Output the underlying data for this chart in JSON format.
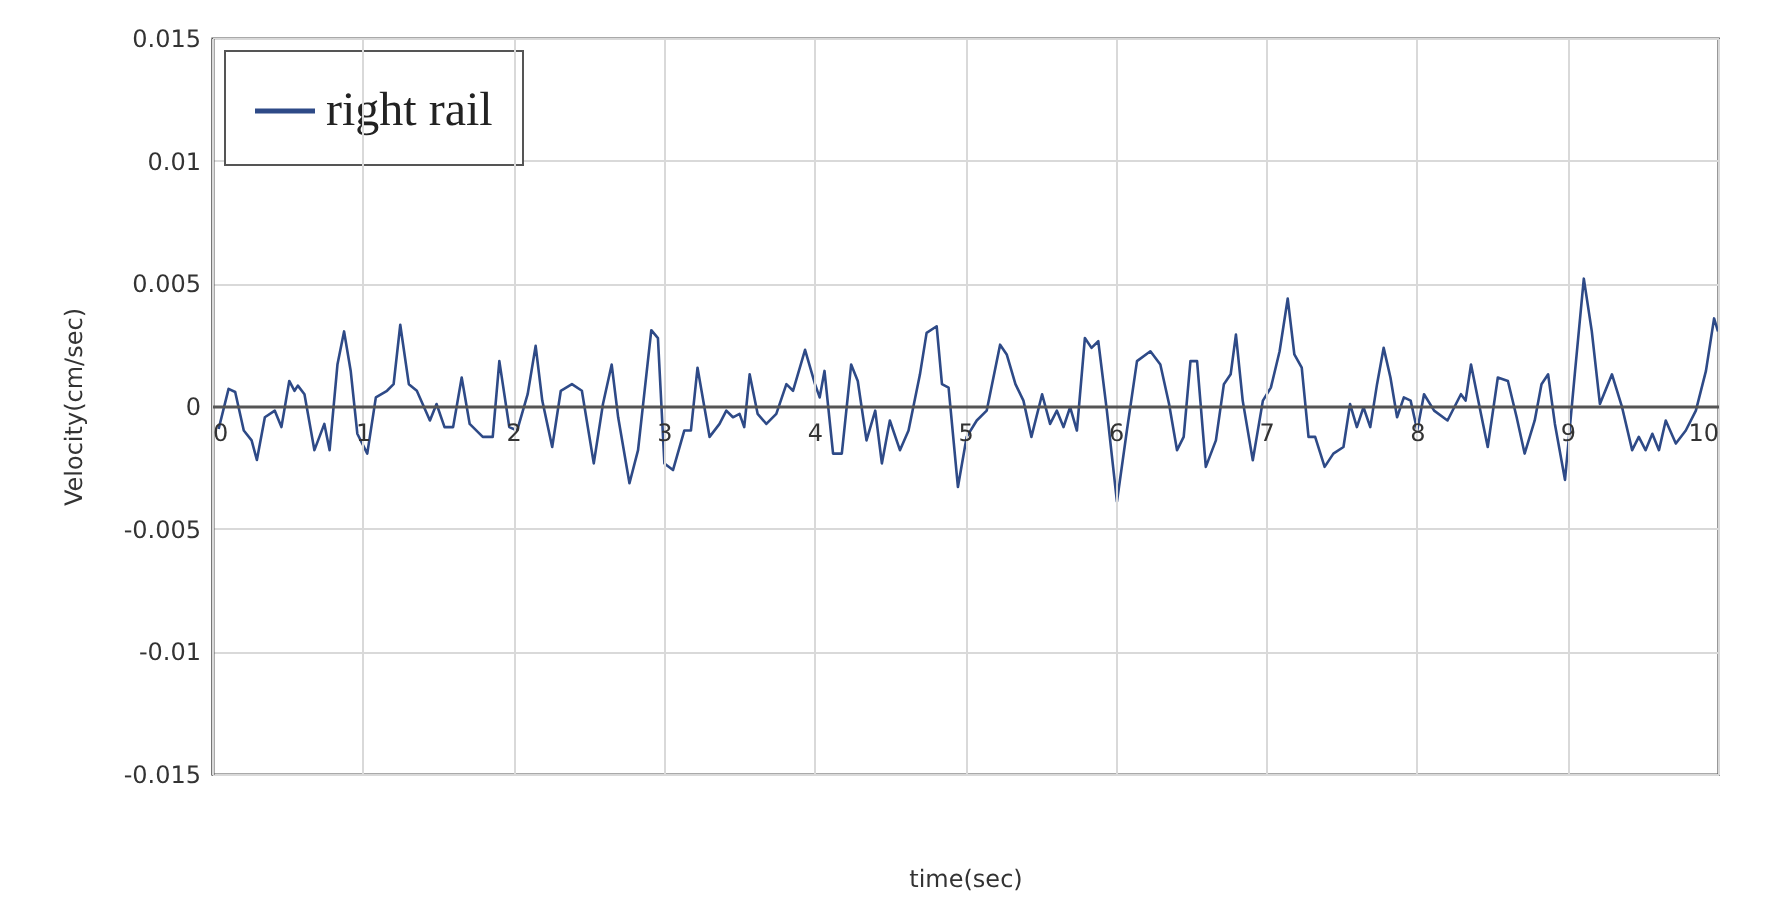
{
  "chart_data": {
    "type": "line",
    "xlabel": "time(sec)",
    "ylabel": "Velocity(cm/sec)",
    "xlim": [
      0,
      10
    ],
    "ylim": [
      -0.015,
      0.015
    ],
    "xticks": [
      0,
      1,
      2,
      3,
      4,
      5,
      6,
      7,
      8,
      9,
      10
    ],
    "yticks": [
      -0.015,
      -0.01,
      -0.005,
      0,
      0.005,
      0.01,
      0.015
    ],
    "grid": true,
    "legend": "top left",
    "marker": "none",
    "line_style": "solid",
    "series": [
      {
        "name": "right rail",
        "color": "#2e4a87",
        "x": [
          0.044,
          0.11,
          0.154,
          0.211,
          0.263,
          0.298,
          0.351,
          0.417,
          0.461,
          0.513,
          0.548,
          0.57,
          0.614,
          0.68,
          0.746,
          0.781,
          0.833,
          0.877,
          0.921,
          0.965,
          1.031,
          1.088,
          1.162,
          1.206,
          1.25,
          1.307,
          1.36,
          1.447,
          1.491,
          1.544,
          1.601,
          1.658,
          1.711,
          1.798,
          1.864,
          1.908,
          1.974,
          2.026,
          2.096,
          2.149,
          2.193,
          2.259,
          2.316,
          2.39,
          2.456,
          2.535,
          2.596,
          2.654,
          2.697,
          2.772,
          2.829,
          2.917,
          2.961,
          3.004,
          3.061,
          3.136,
          3.18,
          3.224,
          3.304,
          3.37,
          3.415,
          3.459,
          3.503,
          3.534,
          3.57,
          3.623,
          3.681,
          3.747,
          3.814,
          3.858,
          3.938,
          4.004,
          4.035,
          4.067,
          4.124,
          4.182,
          4.244,
          4.288,
          4.346,
          4.404,
          4.448,
          4.501,
          4.568,
          4.625,
          4.701,
          4.745,
          4.812,
          4.847,
          4.891,
          4.953,
          5.011,
          5.078,
          5.144,
          5.233,
          5.277,
          5.335,
          5.388,
          5.441,
          5.512,
          5.565,
          5.61,
          5.654,
          5.698,
          5.743,
          5.796,
          5.84,
          5.885,
          5.942,
          6.009,
          6.075,
          6.142,
          6.231,
          6.297,
          6.355,
          6.408,
          6.452,
          6.497,
          6.541,
          6.599,
          6.666,
          6.719,
          6.764,
          6.799,
          6.844,
          6.911,
          6.978,
          7.031,
          7.089,
          7.143,
          7.187,
          7.236,
          7.281,
          7.325,
          7.388,
          7.446,
          7.513,
          7.557,
          7.602,
          7.646,
          7.691,
          7.736,
          7.78,
          7.825,
          7.869,
          7.914,
          7.959,
          8.003,
          8.048,
          8.115,
          8.204,
          8.293,
          8.324,
          8.36,
          8.404,
          8.471,
          8.538,
          8.605,
          8.663,
          8.716,
          8.783,
          8.828,
          8.872,
          8.917,
          8.984,
          9.051,
          9.109,
          9.162,
          9.216,
          9.296,
          9.363,
          9.43,
          9.474,
          9.519,
          9.564,
          9.608,
          9.653,
          9.72,
          9.786,
          9.853,
          9.92,
          9.974,
          10
        ],
        "values": [
          -0.00094,
          0.0007,
          0.00057,
          -0.001,
          -0.0014,
          -0.0022,
          -0.00046,
          -0.00019,
          -0.00086,
          0.00102,
          0.00062,
          0.00083,
          0.00048,
          -0.0018,
          -0.00073,
          -0.0018,
          0.00169,
          0.00304,
          0.00143,
          -0.00113,
          -0.00194,
          0.00035,
          0.00062,
          0.00089,
          0.00331,
          0.00089,
          0.00062,
          -0.00059,
          8e-05,
          -0.00086,
          -0.00086,
          0.00116,
          -0.00073,
          -0.00126,
          -0.00126,
          0.00183,
          -0.00086,
          -0.001,
          0.00048,
          0.00245,
          0.00022,
          -0.00167,
          0.00062,
          0.00089,
          0.00062,
          -0.00234,
          8e-05,
          0.00169,
          -0.00046,
          -0.00315,
          -0.0018,
          0.00309,
          0.00277,
          -0.00234,
          -0.00261,
          -0.001,
          -0.001,
          0.00156,
          -0.00126,
          -0.00073,
          -0.00019,
          -0.00046,
          -0.00032,
          -0.00086,
          0.00129,
          -0.00032,
          -0.00073,
          -0.00032,
          0.00089,
          0.00062,
          0.00229,
          0.00089,
          0.00035,
          0.00143,
          -0.00194,
          -0.00194,
          0.00169,
          0.00102,
          -0.0014,
          -0.00019,
          -0.00234,
          -0.00059,
          -0.0018,
          -0.001,
          0.00129,
          0.00298,
          0.00325,
          0.00089,
          0.00075,
          -0.0033,
          -0.00126,
          -0.00059,
          -0.00019,
          0.0025,
          0.0021,
          0.00089,
          0.00022,
          -0.00126,
          0.00048,
          -0.00073,
          -0.00019,
          -0.00086,
          -5e-05,
          -0.001,
          0.00277,
          0.00237,
          0.00264,
          -0.00019,
          -0.0039,
          -0.001,
          0.00183,
          0.00223,
          0.00169,
          8e-05,
          -0.0018,
          -0.00126,
          0.00183,
          0.00183,
          -0.00248,
          -0.0014,
          0.00089,
          0.00129,
          0.00291,
          0.00022,
          -0.00221,
          0.00022,
          0.00075,
          0.00223,
          0.00438,
          0.0021,
          0.00156,
          -0.00126,
          -0.00126,
          -0.00248,
          -0.00194,
          -0.00167,
          8e-05,
          -0.00086,
          -5e-05,
          -0.00086,
          0.00089,
          0.00237,
          0.00116,
          -0.00046,
          0.00035,
          0.00022,
          -0.001,
          0.00048,
          -0.00019,
          -0.00059,
          0.00048,
          0.00022,
          0.00169,
          0.00035,
          -0.00167,
          0.00116,
          0.00102,
          -0.00046,
          -0.00194,
          -0.00059,
          0.00089,
          0.00129,
          -0.00073,
          -0.00301,
          0.00143,
          0.00519,
          0.00304,
          8e-05,
          0.00129,
          -5e-05,
          -0.0018,
          -0.00126,
          -0.0018,
          -0.00113,
          -0.0018,
          -0.00059,
          -0.00153,
          -0.001,
          -0.00019,
          0.00143,
          0.00357,
          0.00304
        ]
      }
    ]
  }
}
